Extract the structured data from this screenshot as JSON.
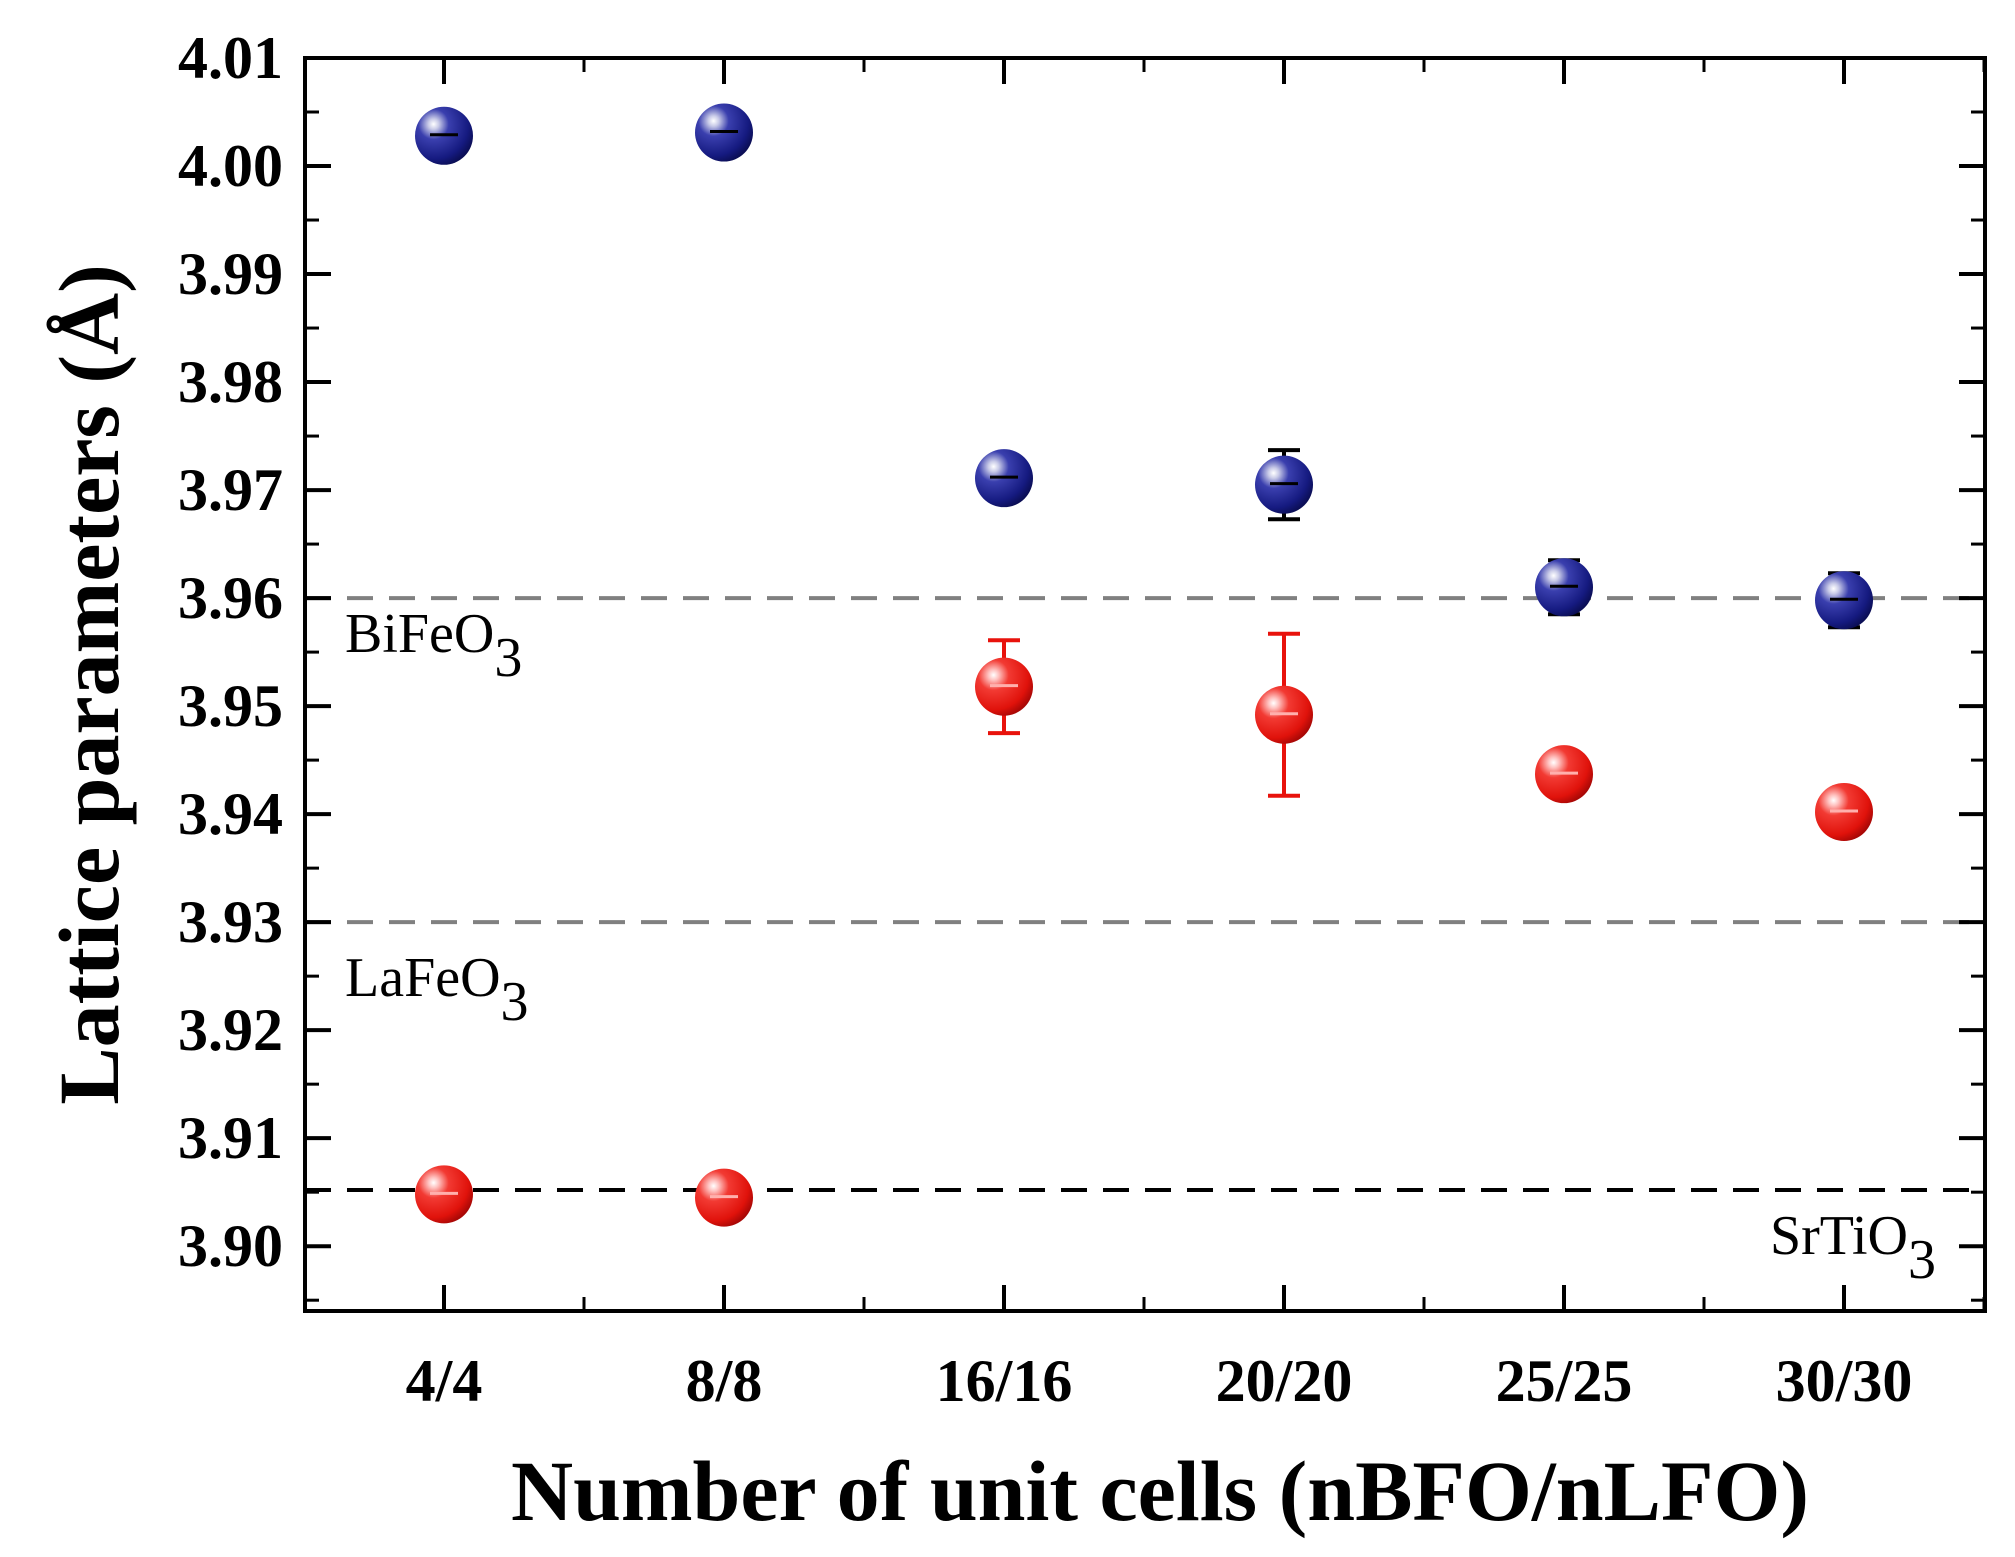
{
  "chart_data": {
    "type": "scatter",
    "title": "",
    "xlabel": "Number of unit cells (nBFO/nLFO)",
    "ylabel": "Lattice parameters (Å)",
    "categories": [
      "4/4",
      "8/8",
      "16/16",
      "20/20",
      "25/25",
      "30/30"
    ],
    "ylim": [
      3.894,
      4.01
    ],
    "yticks": [
      3.9,
      3.91,
      3.92,
      3.93,
      3.94,
      3.95,
      3.96,
      3.97,
      3.98,
      3.99,
      4.0,
      4.01
    ],
    "ytick_labels": [
      "3.90",
      "3.91",
      "3.92",
      "3.93",
      "3.94",
      "3.95",
      "3.96",
      "3.97",
      "3.98",
      "3.99",
      "4.00",
      "4.01"
    ],
    "grid": false,
    "series": [
      {
        "name": "blue",
        "color": "#1a1f8a",
        "values": [
          4.0028,
          4.0031,
          3.9711,
          3.9705,
          3.961,
          3.9598
        ],
        "errors": [
          0.0015,
          0.0017,
          0.002,
          0.0032,
          0.0025,
          0.0025
        ]
      },
      {
        "name": "red",
        "color": "#e8120c",
        "values": [
          3.9048,
          3.9045,
          3.9518,
          3.9492,
          3.9437,
          3.9402
        ],
        "errors": [
          0,
          0,
          0.0043,
          0.0075,
          0,
          0
        ]
      }
    ],
    "reference_lines": [
      {
        "label_main": "BiFeO",
        "label_sub": "3",
        "y": 3.96,
        "color": "#808080"
      },
      {
        "label_main": "LaFeO",
        "label_sub": "3",
        "y": 3.93,
        "color": "#808080"
      },
      {
        "label_main": "SrTiO",
        "label_sub": "3",
        "y": 3.9052,
        "color": "#000000"
      }
    ]
  }
}
